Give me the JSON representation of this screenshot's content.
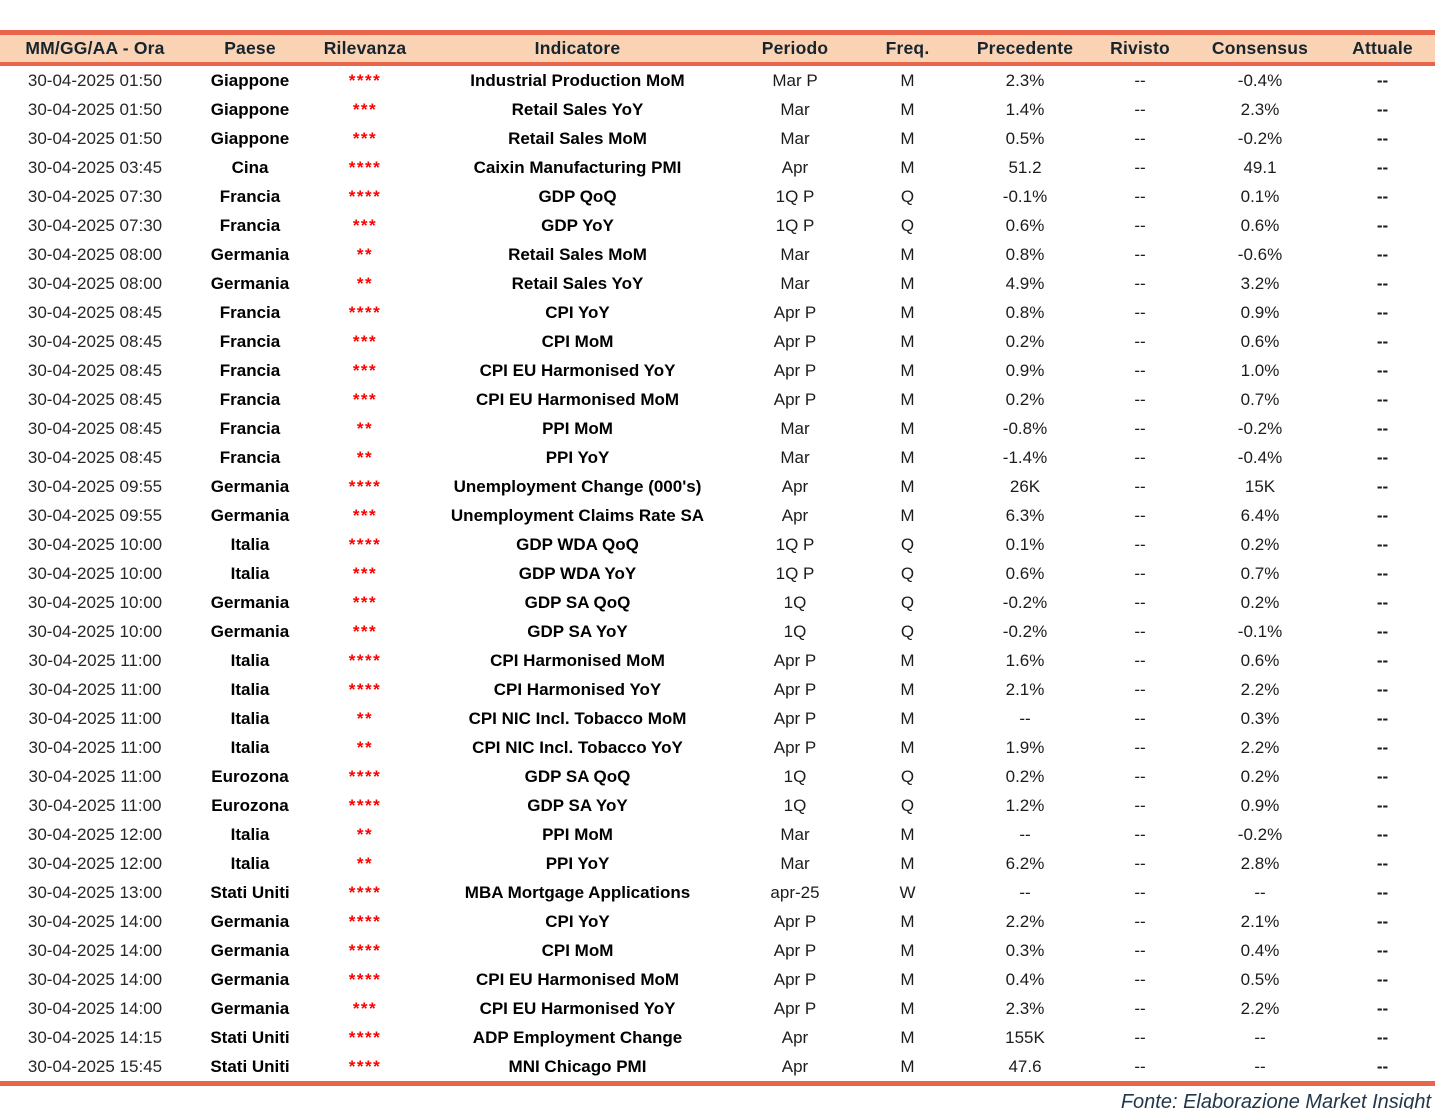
{
  "table": {
    "columns": [
      {
        "key": "datetime",
        "label": "MM/GG/AA - Ora"
      },
      {
        "key": "country",
        "label": "Paese"
      },
      {
        "key": "relevance",
        "label": "Rilevanza"
      },
      {
        "key": "indicator",
        "label": "Indicatore"
      },
      {
        "key": "period",
        "label": "Periodo"
      },
      {
        "key": "freq",
        "label": "Freq."
      },
      {
        "key": "previous",
        "label": "Precedente"
      },
      {
        "key": "revised",
        "label": "Rivisto"
      },
      {
        "key": "consensus",
        "label": "Consensus"
      },
      {
        "key": "actual",
        "label": "Attuale"
      }
    ],
    "rows": [
      {
        "datetime": "30-04-2025 01:50",
        "country": "Giappone",
        "relevance": "****",
        "indicator": "Industrial Production MoM",
        "period": "Mar P",
        "freq": "M",
        "previous": "2.3%",
        "revised": "--",
        "consensus": "-0.4%",
        "actual": "--"
      },
      {
        "datetime": "30-04-2025 01:50",
        "country": "Giappone",
        "relevance": "***",
        "indicator": "Retail Sales YoY",
        "period": "Mar",
        "freq": "M",
        "previous": "1.4%",
        "revised": "--",
        "consensus": "2.3%",
        "actual": "--"
      },
      {
        "datetime": "30-04-2025 01:50",
        "country": "Giappone",
        "relevance": "***",
        "indicator": "Retail Sales MoM",
        "period": "Mar",
        "freq": "M",
        "previous": "0.5%",
        "revised": "--",
        "consensus": "-0.2%",
        "actual": "--"
      },
      {
        "datetime": "30-04-2025 03:45",
        "country": "Cina",
        "relevance": "****",
        "indicator": "Caixin Manufacturing PMI",
        "period": "Apr",
        "freq": "M",
        "previous": "51.2",
        "revised": "--",
        "consensus": "49.1",
        "actual": "--"
      },
      {
        "datetime": "30-04-2025 07:30",
        "country": "Francia",
        "relevance": "****",
        "indicator": "GDP QoQ",
        "period": "1Q P",
        "freq": "Q",
        "previous": "-0.1%",
        "revised": "--",
        "consensus": "0.1%",
        "actual": "--"
      },
      {
        "datetime": "30-04-2025 07:30",
        "country": "Francia",
        "relevance": "***",
        "indicator": "GDP YoY",
        "period": "1Q P",
        "freq": "Q",
        "previous": "0.6%",
        "revised": "--",
        "consensus": "0.6%",
        "actual": "--"
      },
      {
        "datetime": "30-04-2025 08:00",
        "country": "Germania",
        "relevance": "**",
        "indicator": "Retail Sales MoM",
        "period": "Mar",
        "freq": "M",
        "previous": "0.8%",
        "revised": "--",
        "consensus": "-0.6%",
        "actual": "--"
      },
      {
        "datetime": "30-04-2025 08:00",
        "country": "Germania",
        "relevance": "**",
        "indicator": "Retail Sales YoY",
        "period": "Mar",
        "freq": "M",
        "previous": "4.9%",
        "revised": "--",
        "consensus": "3.2%",
        "actual": "--"
      },
      {
        "datetime": "30-04-2025 08:45",
        "country": "Francia",
        "relevance": "****",
        "indicator": "CPI YoY",
        "period": "Apr P",
        "freq": "M",
        "previous": "0.8%",
        "revised": "--",
        "consensus": "0.9%",
        "actual": "--"
      },
      {
        "datetime": "30-04-2025 08:45",
        "country": "Francia",
        "relevance": "***",
        "indicator": "CPI MoM",
        "period": "Apr P",
        "freq": "M",
        "previous": "0.2%",
        "revised": "--",
        "consensus": "0.6%",
        "actual": "--"
      },
      {
        "datetime": "30-04-2025 08:45",
        "country": "Francia",
        "relevance": "***",
        "indicator": "CPI EU Harmonised YoY",
        "period": "Apr P",
        "freq": "M",
        "previous": "0.9%",
        "revised": "--",
        "consensus": "1.0%",
        "actual": "--"
      },
      {
        "datetime": "30-04-2025 08:45",
        "country": "Francia",
        "relevance": "***",
        "indicator": "CPI EU Harmonised MoM",
        "period": "Apr P",
        "freq": "M",
        "previous": "0.2%",
        "revised": "--",
        "consensus": "0.7%",
        "actual": "--"
      },
      {
        "datetime": "30-04-2025 08:45",
        "country": "Francia",
        "relevance": "**",
        "indicator": "PPI MoM",
        "period": "Mar",
        "freq": "M",
        "previous": "-0.8%",
        "revised": "--",
        "consensus": "-0.2%",
        "actual": "--"
      },
      {
        "datetime": "30-04-2025 08:45",
        "country": "Francia",
        "relevance": "**",
        "indicator": "PPI YoY",
        "period": "Mar",
        "freq": "M",
        "previous": "-1.4%",
        "revised": "--",
        "consensus": "-0.4%",
        "actual": "--"
      },
      {
        "datetime": "30-04-2025 09:55",
        "country": "Germania",
        "relevance": "****",
        "indicator": "Unemployment Change (000's)",
        "period": "Apr",
        "freq": "M",
        "previous": "26K",
        "revised": "--",
        "consensus": "15K",
        "actual": "--"
      },
      {
        "datetime": "30-04-2025 09:55",
        "country": "Germania",
        "relevance": "***",
        "indicator": "Unemployment Claims Rate SA",
        "period": "Apr",
        "freq": "M",
        "previous": "6.3%",
        "revised": "--",
        "consensus": "6.4%",
        "actual": "--"
      },
      {
        "datetime": "30-04-2025 10:00",
        "country": "Italia",
        "relevance": "****",
        "indicator": "GDP WDA QoQ",
        "period": "1Q P",
        "freq": "Q",
        "previous": "0.1%",
        "revised": "--",
        "consensus": "0.2%",
        "actual": "--"
      },
      {
        "datetime": "30-04-2025 10:00",
        "country": "Italia",
        "relevance": "***",
        "indicator": "GDP WDA YoY",
        "period": "1Q P",
        "freq": "Q",
        "previous": "0.6%",
        "revised": "--",
        "consensus": "0.7%",
        "actual": "--"
      },
      {
        "datetime": "30-04-2025 10:00",
        "country": "Germania",
        "relevance": "***",
        "indicator": "GDP SA QoQ",
        "period": "1Q",
        "freq": "Q",
        "previous": "-0.2%",
        "revised": "--",
        "consensus": "0.2%",
        "actual": "--"
      },
      {
        "datetime": "30-04-2025 10:00",
        "country": "Germania",
        "relevance": "***",
        "indicator": "GDP SA YoY",
        "period": "1Q",
        "freq": "Q",
        "previous": "-0.2%",
        "revised": "--",
        "consensus": "-0.1%",
        "actual": "--"
      },
      {
        "datetime": "30-04-2025 11:00",
        "country": "Italia",
        "relevance": "****",
        "indicator": "CPI Harmonised MoM",
        "period": "Apr P",
        "freq": "M",
        "previous": "1.6%",
        "revised": "--",
        "consensus": "0.6%",
        "actual": "--"
      },
      {
        "datetime": "30-04-2025 11:00",
        "country": "Italia",
        "relevance": "****",
        "indicator": "CPI Harmonised YoY",
        "period": "Apr P",
        "freq": "M",
        "previous": "2.1%",
        "revised": "--",
        "consensus": "2.2%",
        "actual": "--"
      },
      {
        "datetime": "30-04-2025 11:00",
        "country": "Italia",
        "relevance": "**",
        "indicator": "CPI NIC Incl. Tobacco MoM",
        "period": "Apr P",
        "freq": "M",
        "previous": "--",
        "revised": "--",
        "consensus": "0.3%",
        "actual": "--"
      },
      {
        "datetime": "30-04-2025 11:00",
        "country": "Italia",
        "relevance": "**",
        "indicator": "CPI NIC Incl. Tobacco YoY",
        "period": "Apr P",
        "freq": "M",
        "previous": "1.9%",
        "revised": "--",
        "consensus": "2.2%",
        "actual": "--"
      },
      {
        "datetime": "30-04-2025 11:00",
        "country": "Eurozona",
        "relevance": "****",
        "indicator": "GDP SA QoQ",
        "period": "1Q",
        "freq": "Q",
        "previous": "0.2%",
        "revised": "--",
        "consensus": "0.2%",
        "actual": "--"
      },
      {
        "datetime": "30-04-2025 11:00",
        "country": "Eurozona",
        "relevance": "****",
        "indicator": "GDP SA YoY",
        "period": "1Q",
        "freq": "Q",
        "previous": "1.2%",
        "revised": "--",
        "consensus": "0.9%",
        "actual": "--"
      },
      {
        "datetime": "30-04-2025 12:00",
        "country": "Italia",
        "relevance": "**",
        "indicator": "PPI MoM",
        "period": "Mar",
        "freq": "M",
        "previous": "--",
        "revised": "--",
        "consensus": "-0.2%",
        "actual": "--"
      },
      {
        "datetime": "30-04-2025 12:00",
        "country": "Italia",
        "relevance": "**",
        "indicator": "PPI YoY",
        "period": "Mar",
        "freq": "M",
        "previous": "6.2%",
        "revised": "--",
        "consensus": "2.8%",
        "actual": "--"
      },
      {
        "datetime": "30-04-2025 13:00",
        "country": "Stati Uniti",
        "relevance": "****",
        "indicator": "MBA Mortgage Applications",
        "period": "apr-25",
        "freq": "W",
        "previous": "--",
        "revised": "--",
        "consensus": "--",
        "actual": "--"
      },
      {
        "datetime": "30-04-2025 14:00",
        "country": "Germania",
        "relevance": "****",
        "indicator": "CPI YoY",
        "period": "Apr P",
        "freq": "M",
        "previous": "2.2%",
        "revised": "--",
        "consensus": "2.1%",
        "actual": "--"
      },
      {
        "datetime": "30-04-2025 14:00",
        "country": "Germania",
        "relevance": "****",
        "indicator": "CPI MoM",
        "period": "Apr P",
        "freq": "M",
        "previous": "0.3%",
        "revised": "--",
        "consensus": "0.4%",
        "actual": "--"
      },
      {
        "datetime": "30-04-2025 14:00",
        "country": "Germania",
        "relevance": "****",
        "indicator": "CPI EU Harmonised MoM",
        "period": "Apr P",
        "freq": "M",
        "previous": "0.4%",
        "revised": "--",
        "consensus": "0.5%",
        "actual": "--"
      },
      {
        "datetime": "30-04-2025 14:00",
        "country": "Germania",
        "relevance": "***",
        "indicator": "CPI EU Harmonised YoY",
        "period": "Apr P",
        "freq": "M",
        "previous": "2.3%",
        "revised": "--",
        "consensus": "2.2%",
        "actual": "--"
      },
      {
        "datetime": "30-04-2025 14:15",
        "country": "Stati Uniti",
        "relevance": "****",
        "indicator": "ADP Employment Change",
        "period": "Apr",
        "freq": "M",
        "previous": "155K",
        "revised": "--",
        "consensus": "--",
        "actual": "--"
      },
      {
        "datetime": "30-04-2025 15:45",
        "country": "Stati Uniti",
        "relevance": "****",
        "indicator": "MNI Chicago PMI",
        "period": "Apr",
        "freq": "M",
        "previous": "47.6",
        "revised": "--",
        "consensus": "--",
        "actual": "--"
      }
    ]
  },
  "footer": {
    "source": "Fonte: Elaborazione Market Insight"
  },
  "colors": {
    "header_background": "#FAD2B4",
    "border_accent": "#E8654C",
    "relevance_star": "#FF0000",
    "header_text": "#16242E"
  }
}
